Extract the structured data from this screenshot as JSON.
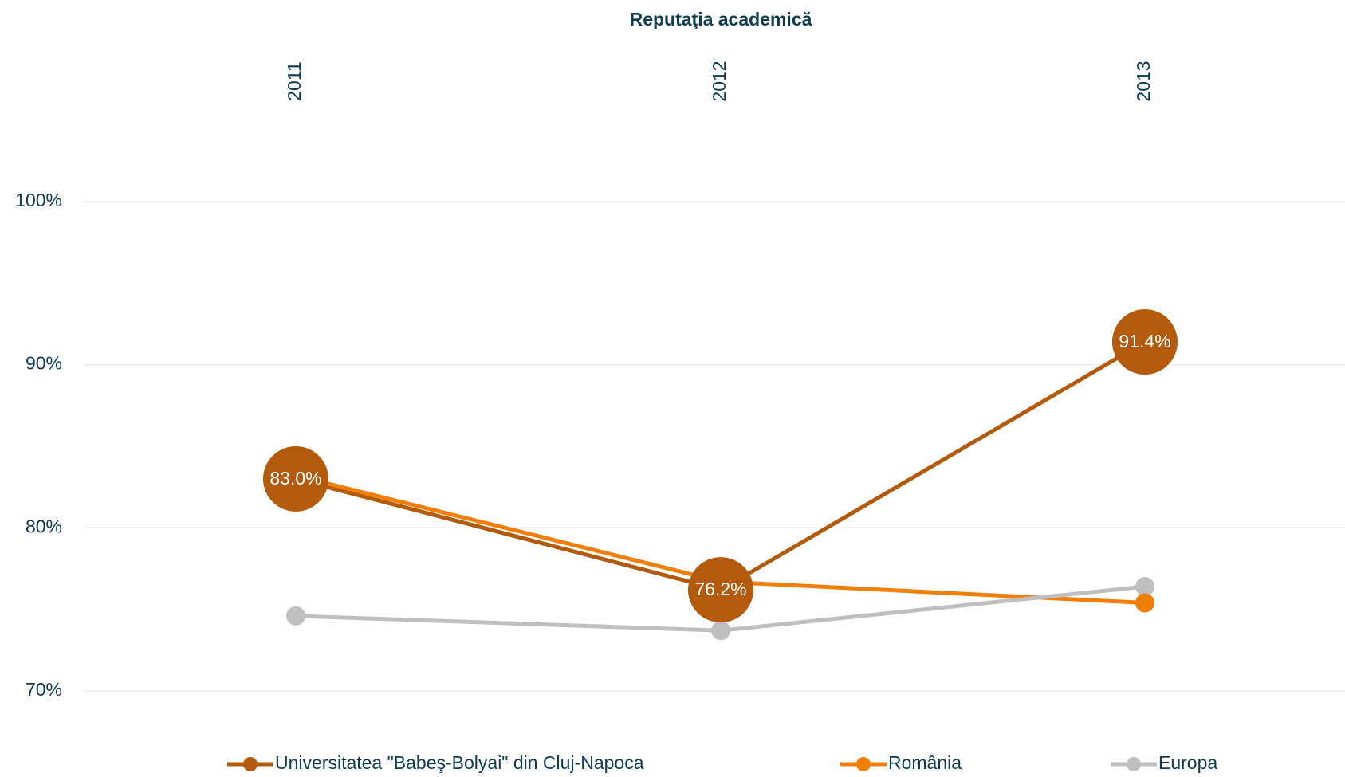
{
  "chart_data": {
    "type": "line",
    "title": "Reputaţia academică",
    "categories": [
      "2011",
      "2012",
      "2013"
    ],
    "series": [
      {
        "name": "Universitatea \"Babeş-Bolyai\" din Cluj-Napoca",
        "color": "#b35a0c",
        "values": [
          83.0,
          76.2,
          91.4
        ],
        "value_labels": [
          "83.0%",
          "76.2%",
          "91.4%"
        ]
      },
      {
        "name": "România",
        "color": "#f07f09",
        "values": [
          83.2,
          76.7,
          75.4
        ]
      },
      {
        "name": "Europa",
        "color": "#bfbfbf",
        "values": [
          74.6,
          73.7,
          76.4
        ]
      }
    ],
    "ylim": [
      70,
      100
    ],
    "yticks": [
      {
        "value": 70,
        "label": "70%"
      },
      {
        "value": 80,
        "label": "80%"
      },
      {
        "value": 90,
        "label": "90%"
      },
      {
        "value": 100,
        "label": "100%"
      }
    ],
    "grid": true,
    "legend": "bottom"
  }
}
